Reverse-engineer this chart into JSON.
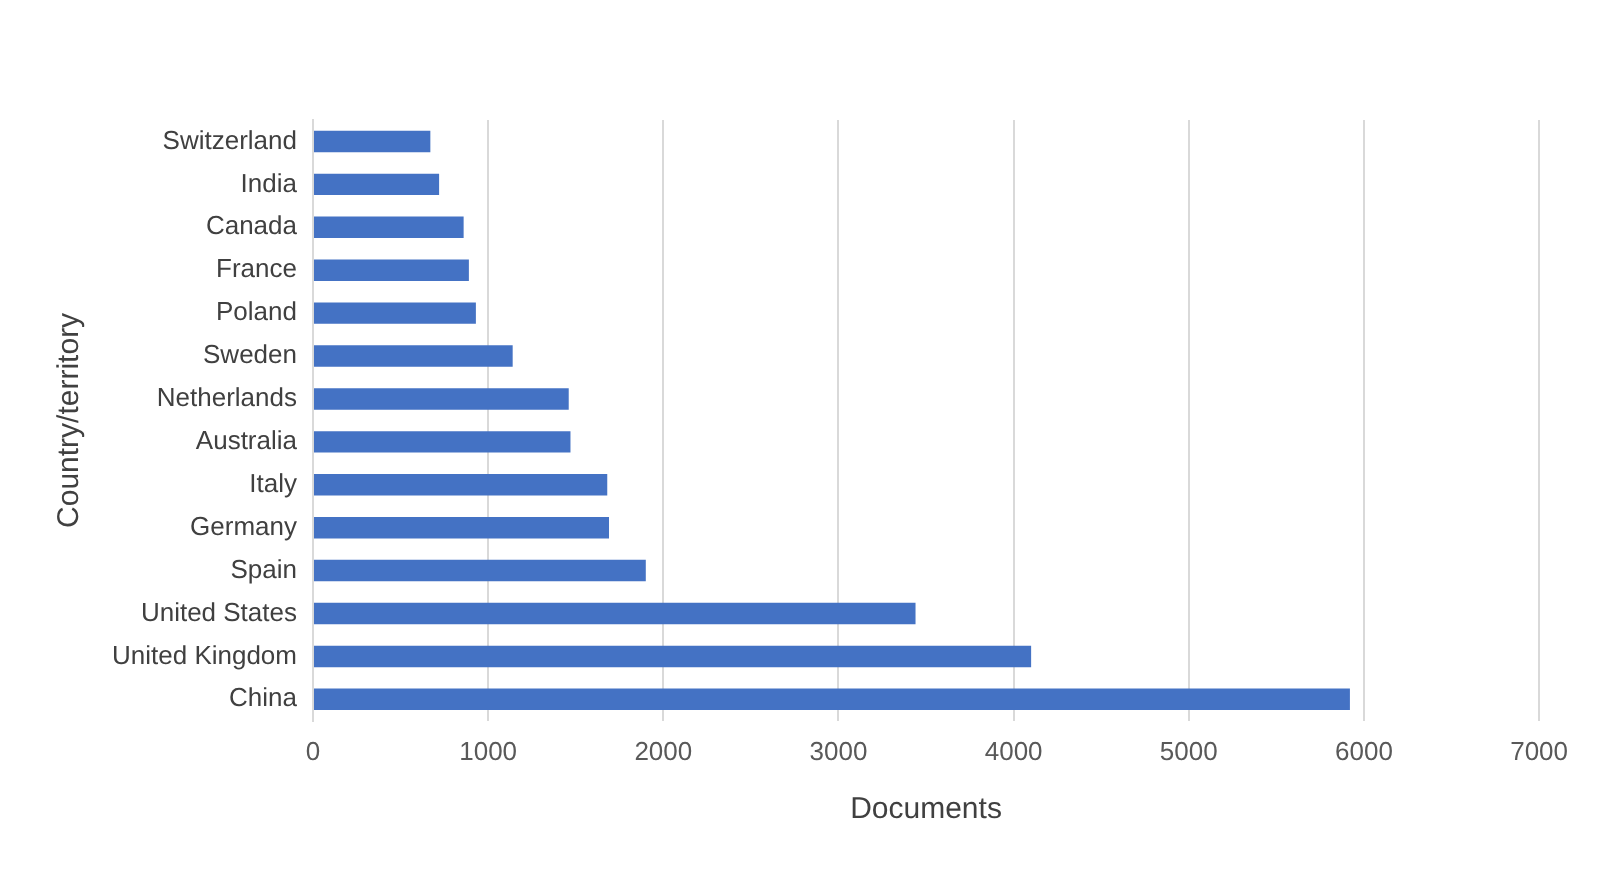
{
  "chart_data": {
    "type": "bar",
    "orientation": "horizontal",
    "xlabel": "Documents",
    "ylabel": "Country/territory",
    "categories": [
      "Switzerland",
      "India",
      "Canada",
      "France",
      "Poland",
      "Sweden",
      "Netherlands",
      "Australia",
      "Italy",
      "Germany",
      "Spain",
      "United States",
      "United Kingdom",
      "China"
    ],
    "values": [
      670,
      720,
      860,
      890,
      930,
      1140,
      1460,
      1470,
      1680,
      1690,
      1900,
      3440,
      4100,
      5920
    ],
    "color": "#4472c4",
    "xlim": [
      0,
      7000
    ],
    "xticks": [
      0,
      1000,
      2000,
      3000,
      4000,
      5000,
      6000,
      7000
    ],
    "grid": "x",
    "legend": false
  }
}
